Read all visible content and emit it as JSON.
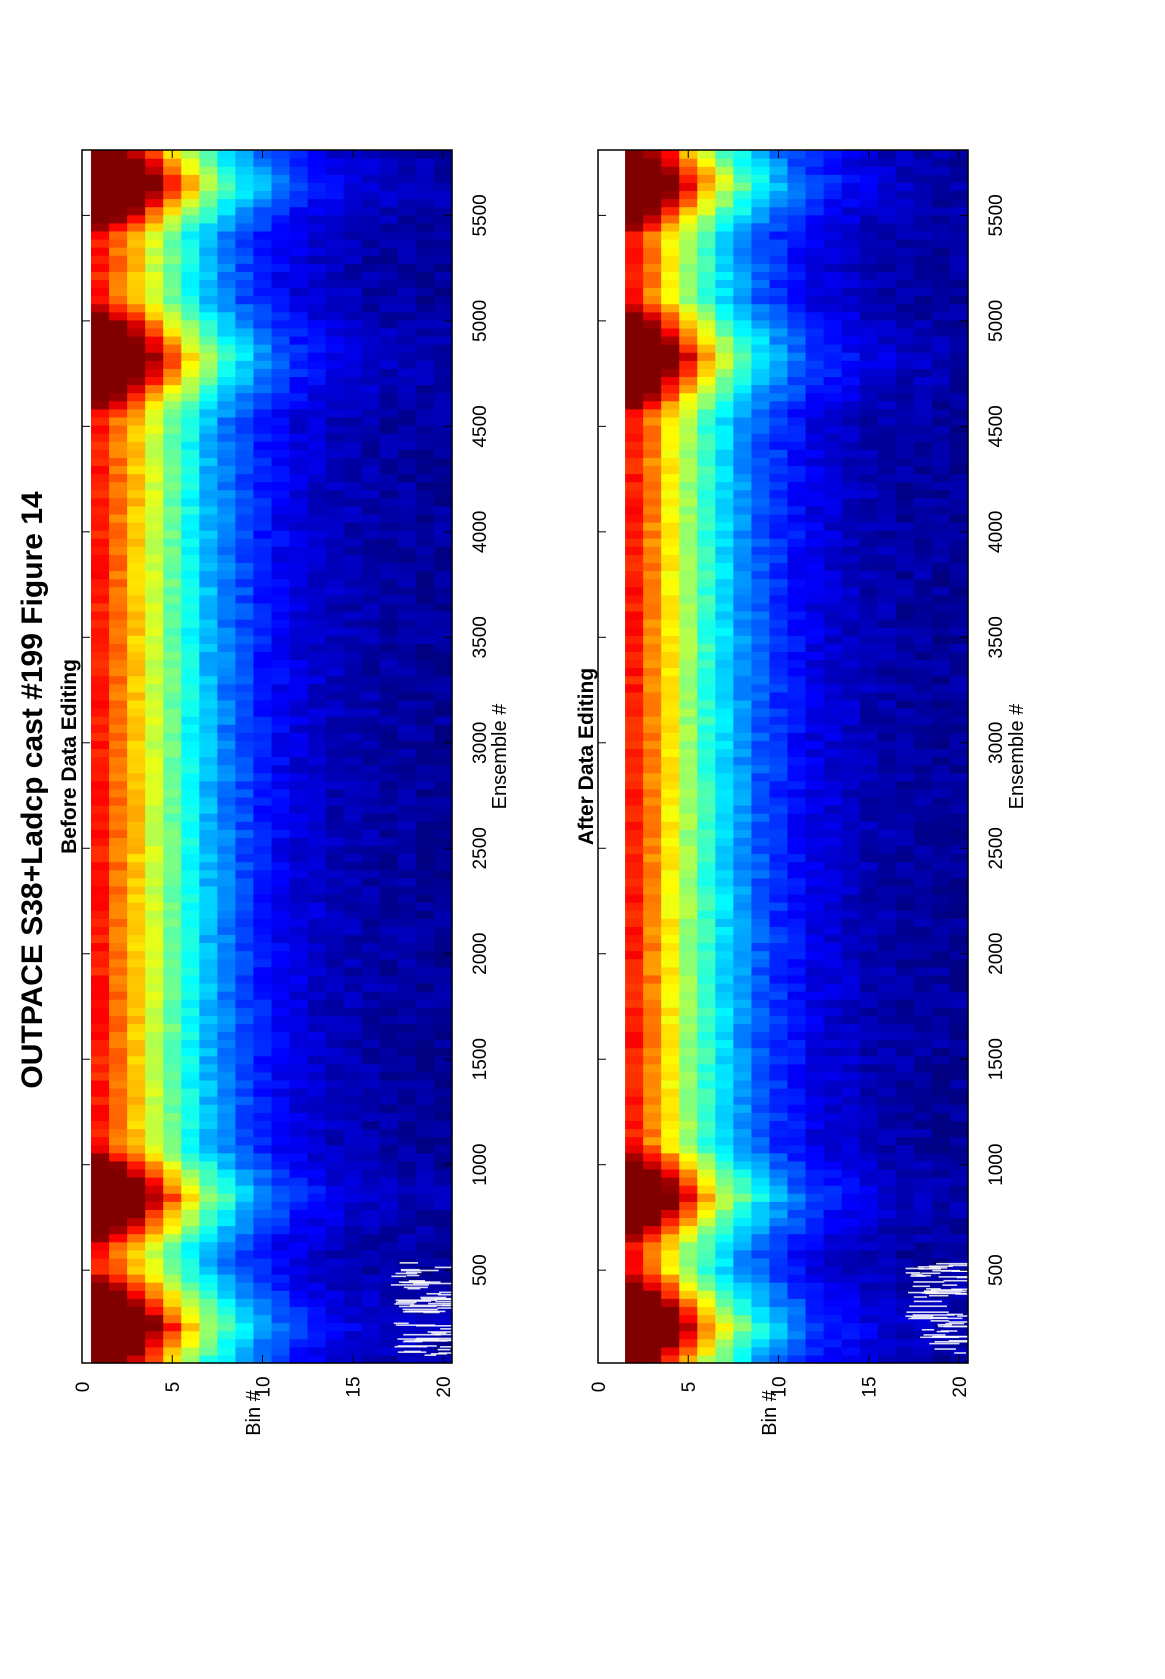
{
  "figure": {
    "title": "OUTPACE S38+Ladcp cast #199  Figure 14",
    "orientation": "rotated 90° counter-clockwise (landscape page shown in portrait)",
    "colormap": "jet"
  },
  "chart_data": [
    {
      "type": "heatmap",
      "title": "Before Data Editing",
      "xlabel": "Ensemble #",
      "ylabel": "Bin #",
      "xlim": [
        60,
        5810
      ],
      "ylim": [
        0,
        20.5
      ],
      "y_reversed": true,
      "x_ticks": [
        500,
        1000,
        1500,
        2000,
        2500,
        3000,
        3500,
        4000,
        4500,
        5000,
        5500
      ],
      "x_tick_labels": [
        "500",
        "1000",
        "1500",
        "2000",
        "2500",
        "3000",
        "3500",
        "4000",
        "4500",
        "5000",
        "5500"
      ],
      "y_ticks": [
        0,
        5,
        10,
        15,
        20
      ],
      "y_tick_labels": [
        "0",
        "5",
        "10",
        "15",
        "20"
      ],
      "bins": [
        1,
        20
      ],
      "grid": false,
      "color_scale": [
        0,
        1
      ],
      "value_model": "normalized intensity ≈ 1.0 at bin 1 decaying with bin number; brighter bands near ensembles ~200, ~850 and ~4900; bright bin-1 column at ensembles 5500–5810",
      "profile_by_bin": [
        1.0,
        0.9,
        0.8,
        0.68,
        0.56,
        0.45,
        0.36,
        0.29,
        0.23,
        0.18,
        0.14,
        0.11,
        0.09,
        0.07,
        0.06,
        0.05,
        0.04,
        0.04,
        0.03,
        0.03
      ],
      "highlights": [
        {
          "ensemble_range": [
            60,
            400
          ],
          "peak_value": 0.92
        },
        {
          "ensemble_range": [
            700,
            1000
          ],
          "peak_value": 0.82
        },
        {
          "ensemble_range": [
            4650,
            5000
          ],
          "peak_value": 0.85
        },
        {
          "ensemble_range": [
            5500,
            5810
          ],
          "peak_value": 1.0
        }
      ],
      "masked_region": {
        "ensemble_range": [
          100,
          540
        ],
        "bin_range": [
          17,
          20
        ]
      }
    },
    {
      "type": "heatmap",
      "title": "After Data Editing",
      "xlabel": "Ensemble #",
      "ylabel": "Bin #",
      "xlim": [
        60,
        5810
      ],
      "ylim": [
        0,
        20.5
      ],
      "y_reversed": true,
      "x_ticks": [
        500,
        1000,
        1500,
        2000,
        2500,
        3000,
        3500,
        4000,
        4500,
        5000,
        5500
      ],
      "x_tick_labels": [
        "500",
        "1000",
        "1500",
        "2000",
        "2500",
        "3000",
        "3500",
        "4000",
        "4500",
        "5000",
        "5500"
      ],
      "y_ticks": [
        0,
        5,
        10,
        15,
        20
      ],
      "y_tick_labels": [
        "0",
        "5",
        "10",
        "15",
        "20"
      ],
      "bins": [
        2,
        20
      ],
      "grid": false,
      "color_scale": [
        0,
        1
      ],
      "value_model": "bin 1 removed by editing; normalized intensity ≈ 1.0 at bin 2 decaying with bin number; brighter bands near ensembles ~200, ~850 and ~4900",
      "profile_by_bin": [
        null,
        1.0,
        0.88,
        0.75,
        0.62,
        0.5,
        0.4,
        0.32,
        0.25,
        0.2,
        0.16,
        0.12,
        0.1,
        0.08,
        0.06,
        0.05,
        0.04,
        0.04,
        0.03,
        0.03
      ],
      "highlights": [
        {
          "ensemble_range": [
            60,
            400
          ],
          "peak_value": 0.95
        },
        {
          "ensemble_range": [
            700,
            1000
          ],
          "peak_value": 0.85
        },
        {
          "ensemble_range": [
            4650,
            5000
          ],
          "peak_value": 0.9
        },
        {
          "ensemble_range": [
            5500,
            5810
          ],
          "peak_value": 0.9
        }
      ],
      "masked_region": {
        "ensemble_range": [
          100,
          540
        ],
        "bin_range": [
          17,
          20
        ]
      }
    }
  ]
}
